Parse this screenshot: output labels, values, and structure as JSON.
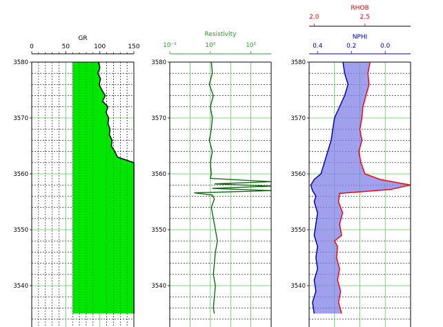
{
  "chart_data": [
    {
      "type": "line",
      "panel": "gr",
      "xlabel": "GR",
      "xlim": [
        0,
        150
      ],
      "x_ticks": [
        "0",
        "50",
        "100",
        "150"
      ],
      "ylim": [
        3535,
        3580
      ],
      "y_inverted": true,
      "y_ticks": [
        "3580",
        "3570",
        "3560",
        "3550",
        "3540"
      ],
      "fill_color": "#00e600",
      "line_color": "#000000",
      "fill_left_value": 60,
      "series": [
        {
          "depth": [
            3580,
            3579,
            3578,
            3577,
            3576,
            3575,
            3574,
            3573,
            3572,
            3571,
            3570,
            3569,
            3568,
            3567,
            3566,
            3565,
            3564,
            3563,
            3562,
            3561,
            3560,
            3559,
            3558,
            3557,
            3556,
            3555,
            3554,
            3553,
            3552,
            3551,
            3550,
            3549,
            3548,
            3547,
            3546,
            3545,
            3544,
            3543,
            3542,
            3541,
            3540,
            3539,
            3538,
            3537,
            3536,
            3535
          ],
          "values": [
            98,
            100,
            97,
            101,
            99,
            103,
            108,
            104,
            112,
            109,
            113,
            112,
            115,
            114,
            118,
            117,
            122,
            126,
            150,
            150,
            150,
            150,
            150,
            150,
            150,
            150,
            150,
            150,
            150,
            150,
            150,
            150,
            150,
            150,
            150,
            150,
            150,
            150,
            150,
            150,
            150,
            150,
            150,
            150,
            150,
            150
          ]
        }
      ]
    },
    {
      "type": "line",
      "panel": "resistivity",
      "title": "Resistivity",
      "x_scale": "log",
      "xlim_exponents": [
        -2,
        3
      ],
      "x_ticks": [
        "10⁻²",
        "10⁰",
        "10²"
      ],
      "ylim": [
        3535,
        3580
      ],
      "y_ticks": [
        "3580",
        "3570",
        "3560",
        "3550",
        "3540"
      ],
      "line_color": "#006400",
      "series": [
        {
          "depth": [
            3580,
            3578,
            3576,
            3574,
            3572,
            3570,
            3568,
            3566,
            3564,
            3562,
            3560,
            3559.2,
            3558.6,
            3558.2,
            3557.8,
            3557.4,
            3557,
            3556.6,
            3556.2,
            3555.5,
            3554,
            3552,
            3550,
            3548,
            3546,
            3544,
            3542,
            3540,
            3538,
            3536,
            3535
          ],
          "log10_values": [
            0.05,
            0.1,
            -0.05,
            0.15,
            0.0,
            0.1,
            0.05,
            -0.05,
            0.1,
            0.0,
            0.05,
            0.0,
            3.0,
            0.2,
            3.0,
            0.1,
            3.0,
            -0.8,
            0.1,
            0.2,
            0.05,
            0.15,
            0.25,
            0.35,
            0.25,
            0.2,
            0.15,
            0.25,
            0.2,
            0.15,
            0.2
          ]
        }
      ]
    },
    {
      "type": "line",
      "panel": "density-neutron",
      "ylim": [
        3535,
        3580
      ],
      "y_ticks": [
        "3580",
        "3570",
        "3560",
        "3550",
        "3540"
      ],
      "fill_color": "#8080e6",
      "series": [
        {
          "name": "RHOB",
          "color": "#ff0000",
          "xlim": [
            1.95,
            2.95
          ],
          "x_ticks": [
            "2.0",
            "2.5"
          ],
          "depth": [
            3580,
            3578,
            3576,
            3574,
            3572,
            3570,
            3568,
            3566,
            3564,
            3562,
            3560,
            3559,
            3558,
            3557.2,
            3556.5,
            3555,
            3553,
            3551,
            3549,
            3548,
            3547,
            3545,
            3543,
            3541,
            3539,
            3537,
            3535
          ],
          "values": [
            2.55,
            2.53,
            2.54,
            2.51,
            2.48,
            2.47,
            2.45,
            2.47,
            2.44,
            2.46,
            2.5,
            2.65,
            2.95,
            2.75,
            2.25,
            2.24,
            2.28,
            2.25,
            2.27,
            2.2,
            2.23,
            2.22,
            2.25,
            2.23,
            2.26,
            2.24,
            2.27
          ]
        },
        {
          "name": "NPHI",
          "color": "#0000cc",
          "xlim": [
            0.45,
            -0.15
          ],
          "x_ticks": [
            "0.4",
            "0.2",
            "0.0"
          ],
          "depth": [
            3580,
            3578,
            3576,
            3574,
            3572,
            3570,
            3568,
            3566,
            3564,
            3562,
            3560,
            3559,
            3558,
            3557,
            3556,
            3555,
            3553,
            3551,
            3549,
            3547,
            3545,
            3543,
            3541,
            3539,
            3537,
            3535
          ],
          "values": [
            0.25,
            0.24,
            0.22,
            0.24,
            0.27,
            0.3,
            0.31,
            0.32,
            0.34,
            0.36,
            0.38,
            0.42,
            0.44,
            0.43,
            0.41,
            0.42,
            0.4,
            0.41,
            0.42,
            0.4,
            0.41,
            0.4,
            0.42,
            0.41,
            0.43,
            0.42
          ]
        }
      ]
    }
  ]
}
